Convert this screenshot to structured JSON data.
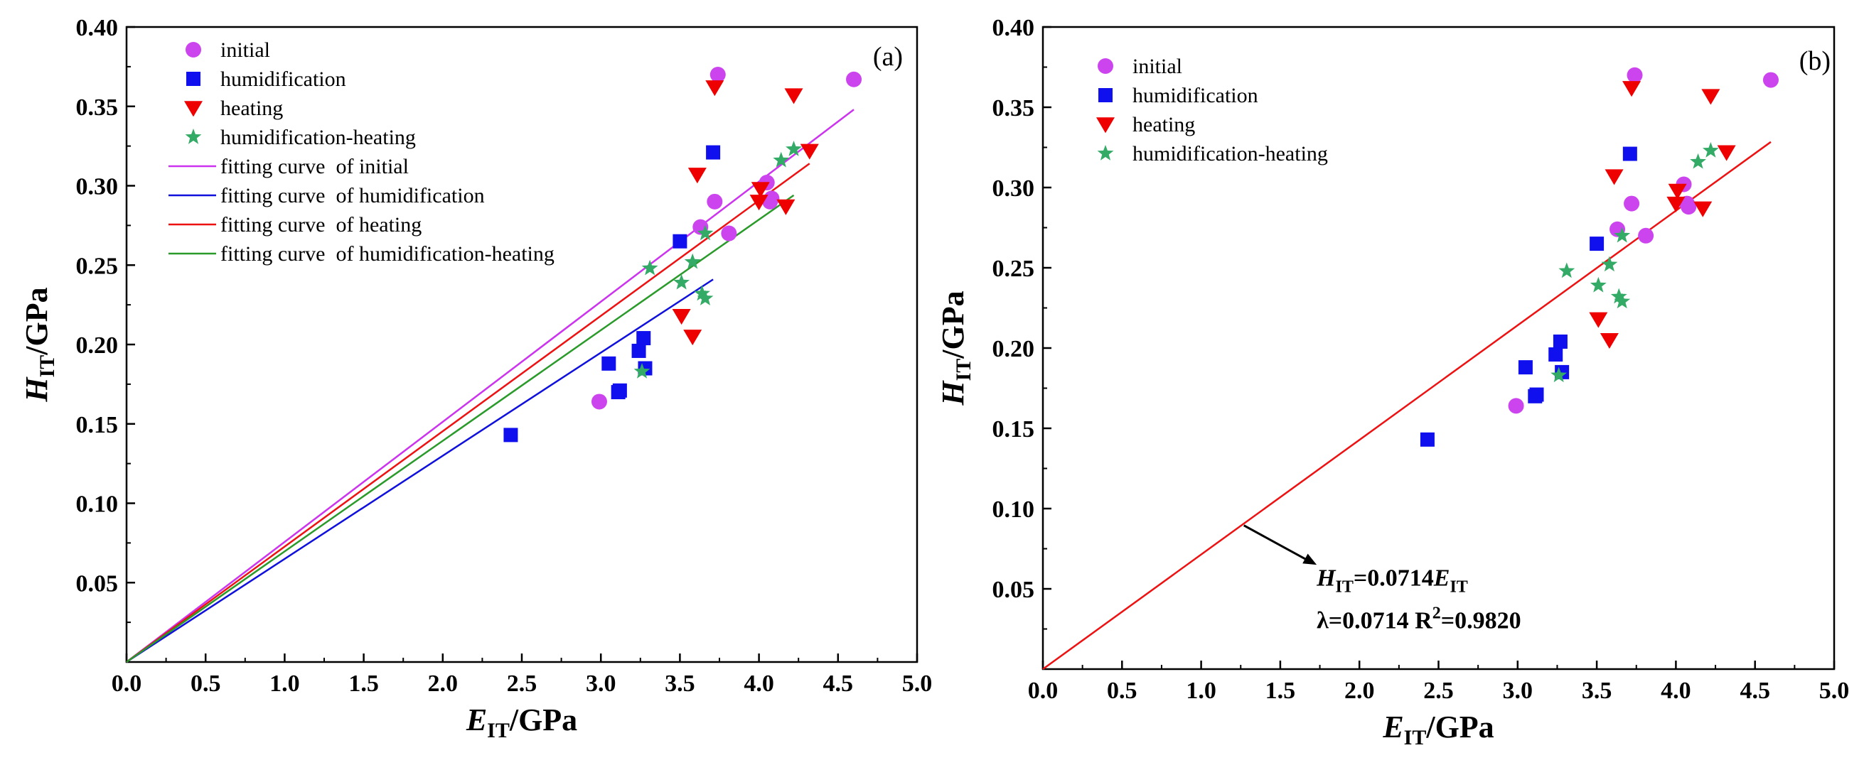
{
  "chart_data": [
    {
      "type": "scatter",
      "panel_label": "(a)",
      "xlabel": {
        "main": "E",
        "sub": "IT",
        "unit": "/GPa"
      },
      "ylabel": {
        "main": "H",
        "sub": "IT",
        "unit": "/GPa"
      },
      "xlim": [
        0,
        5.0
      ],
      "ylim": [
        0,
        0.4
      ],
      "xticks": [
        "0.0",
        "0.5",
        "1.0",
        "1.5",
        "2.0",
        "2.5",
        "3.0",
        "3.5",
        "4.0",
        "4.5",
        "5.0"
      ],
      "yticks": [
        "0.05",
        "0.10",
        "0.15",
        "0.20",
        "0.25",
        "0.30",
        "0.35",
        "0.40"
      ],
      "legend_position": "top-left",
      "series": [
        {
          "name": "initial",
          "marker": "circle",
          "color": "#cc44ee",
          "points": [
            [
              2.99,
              0.164
            ],
            [
              3.63,
              0.274
            ],
            [
              3.72,
              0.29
            ],
            [
              3.74,
              0.37
            ],
            [
              3.81,
              0.27
            ],
            [
              4.05,
              0.302
            ],
            [
              4.07,
              0.29
            ],
            [
              4.08,
              0.292
            ],
            [
              4.6,
              0.367
            ]
          ]
        },
        {
          "name": "humidification",
          "marker": "square",
          "color": "#1010ee",
          "points": [
            [
              2.43,
              0.143
            ],
            [
              3.05,
              0.188
            ],
            [
              3.11,
              0.17
            ],
            [
              3.12,
              0.171
            ],
            [
              3.24,
              0.196
            ],
            [
              3.27,
              0.204
            ],
            [
              3.28,
              0.185
            ],
            [
              3.5,
              0.265
            ],
            [
              3.71,
              0.321
            ]
          ]
        },
        {
          "name": "heating",
          "marker": "triangle-down",
          "color": "#ee0000",
          "points": [
            [
              3.51,
              0.218
            ],
            [
              3.58,
              0.205
            ],
            [
              3.61,
              0.307
            ],
            [
              3.72,
              0.362
            ],
            [
              4.0,
              0.29
            ],
            [
              4.01,
              0.298
            ],
            [
              4.17,
              0.287
            ],
            [
              4.22,
              0.357
            ],
            [
              4.32,
              0.322
            ]
          ]
        },
        {
          "name": "humidification-heating",
          "marker": "star",
          "color": "#33aa66",
          "points": [
            [
              3.26,
              0.183
            ],
            [
              3.31,
              0.248
            ],
            [
              3.51,
              0.239
            ],
            [
              3.58,
              0.252
            ],
            [
              3.64,
              0.232
            ],
            [
              3.66,
              0.229
            ],
            [
              3.66,
              0.27
            ],
            [
              4.14,
              0.316
            ],
            [
              4.22,
              0.323
            ]
          ]
        }
      ],
      "lines": [
        {
          "name": "fitting curve  of initial",
          "color": "#cc33ee",
          "x": [
            0,
            4.6
          ],
          "y": [
            0,
            0.348
          ]
        },
        {
          "name": "fitting curve  of humidification",
          "color": "#1010dd",
          "x": [
            0,
            3.71
          ],
          "y": [
            0,
            0.241
          ]
        },
        {
          "name": "fitting curve  of heating",
          "color": "#ee1111",
          "x": [
            0,
            4.32
          ],
          "y": [
            0,
            0.314
          ]
        },
        {
          "name": "fitting curve  of humidification-heating",
          "color": "#2a9a2a",
          "x": [
            0,
            4.22
          ],
          "y": [
            0,
            0.294
          ]
        }
      ]
    },
    {
      "type": "scatter",
      "panel_label": "(b)",
      "xlabel": {
        "main": "E",
        "sub": "IT",
        "unit": "/GPa"
      },
      "ylabel": {
        "main": "H",
        "sub": "IT",
        "unit": "/GPa"
      },
      "xlim": [
        0,
        5.0
      ],
      "ylim": [
        0,
        0.4
      ],
      "xticks": [
        "0.0",
        "0.5",
        "1.0",
        "1.5",
        "2.0",
        "2.5",
        "3.0",
        "3.5",
        "4.0",
        "4.5",
        "5.0"
      ],
      "yticks": [
        "0.05",
        "0.10",
        "0.15",
        "0.20",
        "0.25",
        "0.30",
        "0.35",
        "0.40"
      ],
      "legend_position": "top-left",
      "series": [
        {
          "name": "initial",
          "marker": "circle",
          "color": "#cc44ee",
          "points": [
            [
              2.99,
              0.164
            ],
            [
              3.63,
              0.274
            ],
            [
              3.72,
              0.29
            ],
            [
              3.74,
              0.37
            ],
            [
              3.81,
              0.27
            ],
            [
              4.05,
              0.302
            ],
            [
              4.07,
              0.29
            ],
            [
              4.08,
              0.288
            ],
            [
              4.6,
              0.367
            ]
          ]
        },
        {
          "name": "humidification",
          "marker": "square",
          "color": "#1010ee",
          "points": [
            [
              2.43,
              0.143
            ],
            [
              3.05,
              0.188
            ],
            [
              3.11,
              0.17
            ],
            [
              3.12,
              0.171
            ],
            [
              3.24,
              0.196
            ],
            [
              3.27,
              0.204
            ],
            [
              3.28,
              0.185
            ],
            [
              3.5,
              0.265
            ],
            [
              3.71,
              0.321
            ]
          ]
        },
        {
          "name": "heating",
          "marker": "triangle-down",
          "color": "#ee0000",
          "points": [
            [
              3.51,
              0.218
            ],
            [
              3.58,
              0.205
            ],
            [
              3.61,
              0.307
            ],
            [
              3.72,
              0.362
            ],
            [
              4.0,
              0.29
            ],
            [
              4.01,
              0.298
            ],
            [
              4.17,
              0.287
            ],
            [
              4.22,
              0.357
            ],
            [
              4.32,
              0.322
            ]
          ]
        },
        {
          "name": "humidification-heating",
          "marker": "star",
          "color": "#33aa66",
          "points": [
            [
              3.26,
              0.183
            ],
            [
              3.31,
              0.248
            ],
            [
              3.51,
              0.239
            ],
            [
              3.58,
              0.252
            ],
            [
              3.64,
              0.232
            ],
            [
              3.66,
              0.229
            ],
            [
              3.66,
              0.27
            ],
            [
              4.14,
              0.316
            ],
            [
              4.22,
              0.323
            ]
          ]
        }
      ],
      "lines": [
        {
          "name": "",
          "color": "#ee1111",
          "x": [
            0,
            4.6
          ],
          "y": [
            0,
            0.3284
          ]
        }
      ],
      "annotation": {
        "equation": {
          "lhs_main": "H",
          "lhs_sub": "IT",
          "mid": "=0.0714",
          "rhs_main": "E",
          "rhs_sub": "IT"
        },
        "stats_prefix": "λ=0.0714 R",
        "stats_sup": "2",
        "stats_suffix": "=0.9820",
        "arrow_from": [
          1.27,
          0.0895
        ],
        "arrow_to": [
          1.73,
          0.065
        ],
        "text_at": [
          1.73,
          0.052
        ]
      }
    }
  ]
}
